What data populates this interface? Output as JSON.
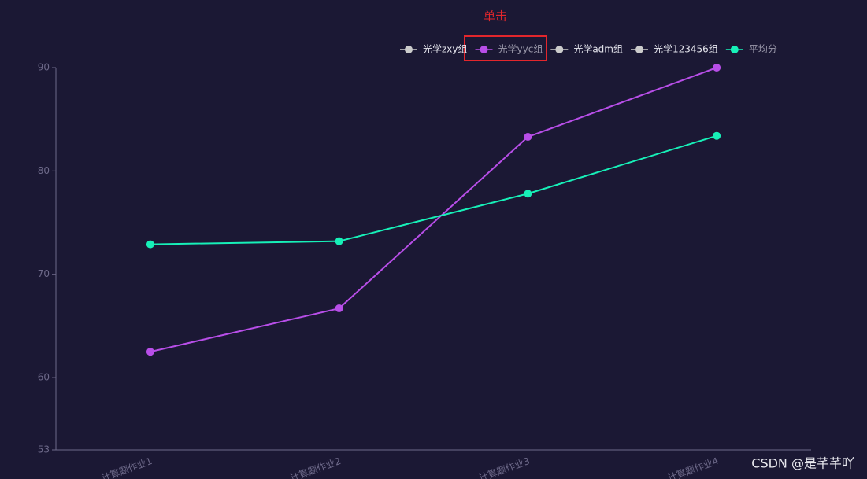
{
  "chart_data": {
    "type": "line",
    "annotation": "单击",
    "watermark": "CSDN @是芊芊吖",
    "categories": [
      "计算题作业1",
      "计算题作业2",
      "计算题作业3",
      "计算题作业4"
    ],
    "series": [
      {
        "name": "光学zxy组",
        "hidden": true
      },
      {
        "name": "光学yyc组",
        "color": "#b84ee8",
        "values": [
          62.5,
          66.7,
          83.3,
          90
        ]
      },
      {
        "name": "光学adm组",
        "hidden": true
      },
      {
        "name": "光学123456组",
        "hidden": true
      },
      {
        "name": "平均分",
        "color": "#17f0b8",
        "values": [
          72.9,
          73.2,
          77.8,
          83.4
        ]
      }
    ],
    "ylim": [
      53,
      90
    ],
    "yticks": [
      53,
      60,
      70,
      80,
      90
    ],
    "grid": false
  }
}
